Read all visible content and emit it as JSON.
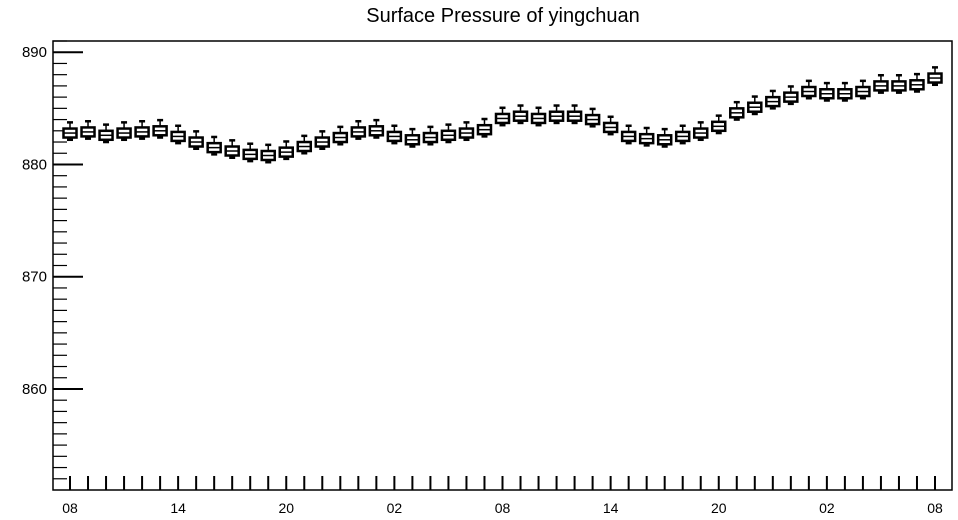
{
  "chart_data": {
    "type": "boxplot",
    "title": "Surface Pressure of yingchuan",
    "xlabel": "",
    "ylabel": "",
    "ylim": [
      851,
      891
    ],
    "y_ticks": [
      860,
      870,
      880,
      890
    ],
    "x_tick_labels": [
      "08",
      "14",
      "20",
      "02",
      "08",
      "14",
      "20",
      "02",
      "08"
    ],
    "grid": false,
    "series": [
      {
        "values": [
          882.8,
          882.9,
          882.6,
          882.8,
          882.9,
          883.0,
          882.5,
          882.0,
          881.5,
          881.2,
          880.9,
          880.8,
          881.1,
          881.6,
          882.0,
          882.4,
          882.9,
          883.0,
          882.5,
          882.2,
          882.4,
          882.6,
          882.8,
          883.1,
          884.1,
          884.3,
          884.1,
          884.3,
          884.3,
          884.0,
          883.3,
          882.5,
          882.3,
          882.2,
          882.5,
          882.8,
          883.4,
          884.6,
          885.1,
          885.6,
          886.0,
          886.5,
          886.3,
          886.3,
          886.5,
          887.0,
          887.0,
          887.1,
          887.7
        ]
      }
    ]
  }
}
